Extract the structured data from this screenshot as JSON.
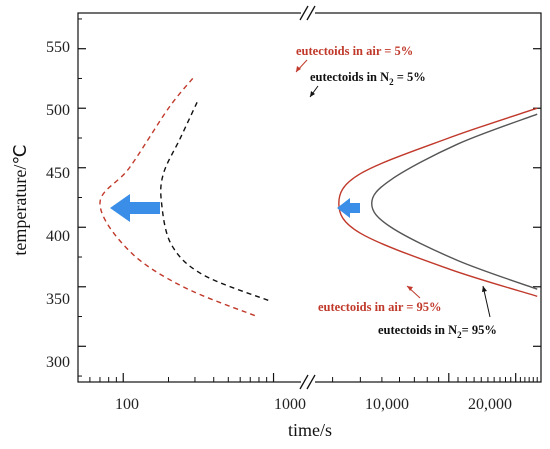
{
  "chart_data": {
    "type": "line",
    "title": "",
    "xlabel": "time/s",
    "ylabel": "temperature/℃",
    "xscale": "log, broken axis",
    "x_ticks": [
      "100",
      "1000",
      "10,000",
      "20,000"
    ],
    "ylim": [
      270,
      580
    ],
    "y_ticks": [
      "300",
      "350",
      "400",
      "450",
      "500",
      "550"
    ],
    "grid": false,
    "legend": "none",
    "series": [
      {
        "key": "air5",
        "name": "eutectoids in air = 5%",
        "color": "#c0392b",
        "style": "dashed",
        "points": [
          [
            290,
            525
          ],
          [
            200,
            500
          ],
          [
            110,
            450
          ],
          [
            70,
            420
          ],
          [
            110,
            380
          ],
          [
            250,
            350
          ],
          [
            780,
            325
          ]
        ]
      },
      {
        "key": "n25",
        "name": "eutectoids in N₂ = 5%",
        "color": "#111111",
        "style": "dashed",
        "points": [
          [
            310,
            505
          ],
          [
            240,
            475
          ],
          [
            185,
            445
          ],
          [
            180,
            420
          ],
          [
            210,
            385
          ],
          [
            340,
            360
          ],
          [
            950,
            338
          ]
        ]
      },
      {
        "key": "air95",
        "name": "eutectoids in air = 95%",
        "color": "#c0392b",
        "style": "solid",
        "points": [
          [
            25000,
            500
          ],
          [
            10000,
            475
          ],
          [
            4000,
            445
          ],
          [
            3200,
            420
          ],
          [
            4000,
            395
          ],
          [
            10000,
            365
          ],
          [
            25000,
            342
          ]
        ]
      },
      {
        "key": "n295",
        "name": "eutectoids in N₂ = 95%",
        "color": "#555555",
        "style": "solid",
        "points": [
          [
            25000,
            495
          ],
          [
            11000,
            470
          ],
          [
            5500,
            440
          ],
          [
            4500,
            420
          ],
          [
            5500,
            400
          ],
          [
            11000,
            372
          ],
          [
            25000,
            348
          ]
        ]
      }
    ],
    "annotations": {
      "air5": {
        "text": "eutectoids in air = 5%",
        "color": "#c0392b"
      },
      "n25": {
        "prefix": "eutectoids in N",
        "sub": "2",
        "suffix": " = 5%",
        "color": "#111111"
      },
      "air95": {
        "text": "eutectoids in air = 95%",
        "color": "#c0392b"
      },
      "n295": {
        "prefix": "eutectoids in  N",
        "sub": "2",
        "suffix": "= 95%",
        "color": "#111111"
      }
    },
    "arrow_color": "#3b8ee8"
  }
}
